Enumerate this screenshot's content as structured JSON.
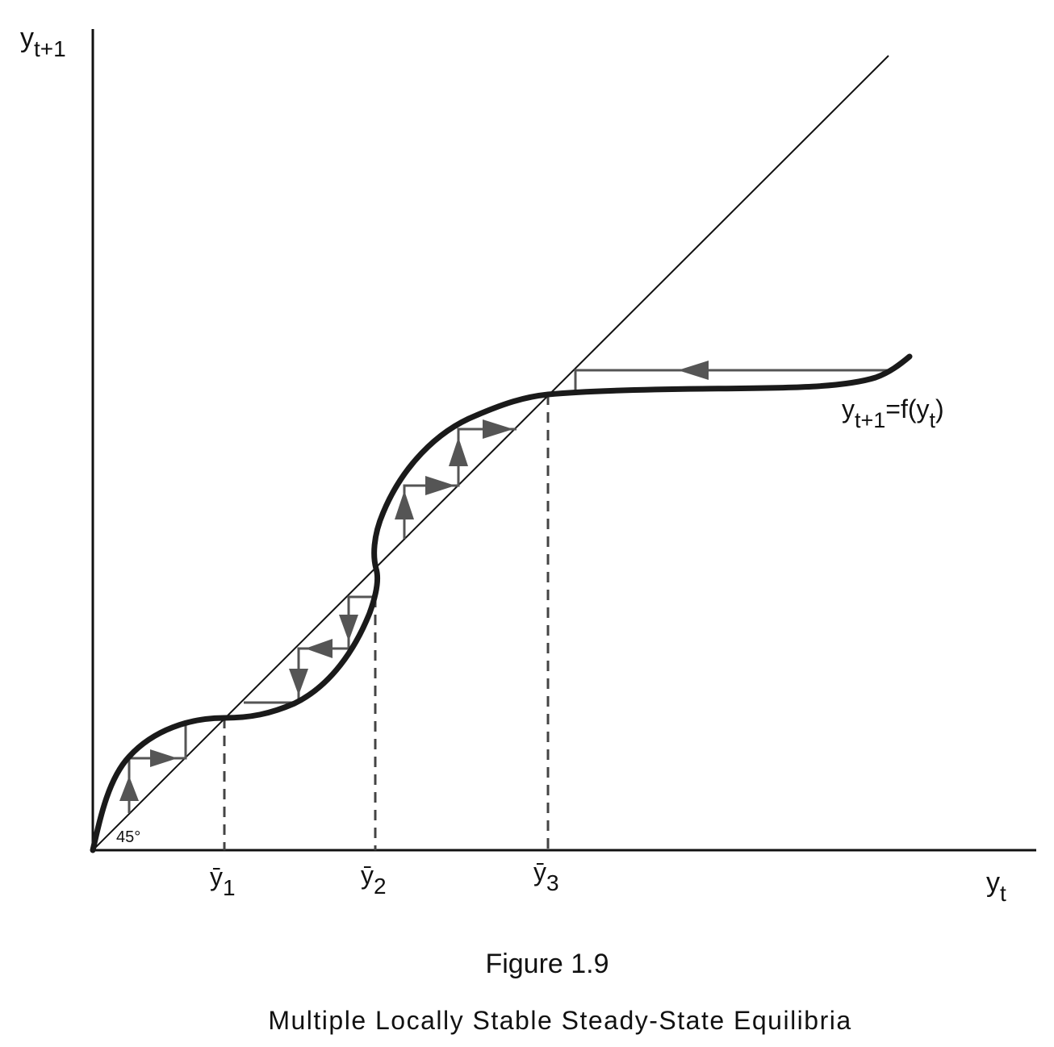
{
  "axes": {
    "y_label": {
      "base": "y",
      "sub": "t+1"
    },
    "x_label": {
      "base": "y",
      "sub": "t"
    }
  },
  "angle_label": "45°",
  "curve_label": {
    "base": "y",
    "sub": "t+1",
    "rest": "=f(y",
    "sub2": "t",
    "close": ")"
  },
  "equilibria": [
    {
      "base": "ȳ",
      "sub": "1"
    },
    {
      "base": "ȳ",
      "sub": "2"
    },
    {
      "base": "ȳ",
      "sub": "3"
    }
  ],
  "caption": {
    "title": "Figure 1.9",
    "subtitle": "Multiple Locally Stable Steady-State Equilibria"
  },
  "colors": {
    "axis": "#111111",
    "curve": "#1a1a1a",
    "cobweb": "#555555"
  }
}
